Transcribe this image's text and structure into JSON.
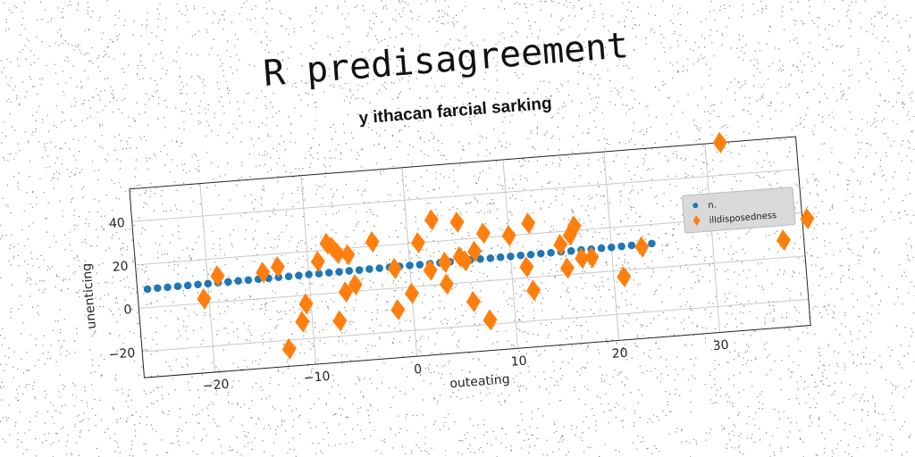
{
  "chart_data": {
    "type": "scatter",
    "title": "R predisagreement",
    "subtitle": "y ithacan farcial sarking",
    "xlabel": "outeating",
    "ylabel": "unenticing",
    "xlim": [
      -27,
      39
    ],
    "ylim": [
      -32,
      55
    ],
    "xticks": [
      -20,
      -10,
      0,
      10,
      20,
      30
    ],
    "yticks": [
      -20,
      0,
      20,
      40
    ],
    "grid": true,
    "legend_position": "right",
    "series": [
      {
        "name": "n.",
        "color": "#1f77b4",
        "marker": "circle",
        "points": [
          [
            -26,
            8.5
          ],
          [
            -25,
            8.6
          ],
          [
            -24,
            8.6
          ],
          [
            -23,
            8.7
          ],
          [
            -22,
            8.7
          ],
          [
            -21,
            8.8
          ],
          [
            -20,
            8.8
          ],
          [
            -19,
            8.9
          ],
          [
            -18,
            8.9
          ],
          [
            -17,
            9.0
          ],
          [
            -16,
            9.0
          ],
          [
            -15,
            9.1
          ],
          [
            -14,
            9.1
          ],
          [
            -13,
            9.2
          ],
          [
            -12,
            9.2
          ],
          [
            -11,
            9.3
          ],
          [
            -10,
            9.4
          ],
          [
            -9,
            9.4
          ],
          [
            -8,
            9.5
          ],
          [
            -7,
            9.5
          ],
          [
            -6,
            9.6
          ],
          [
            -5,
            9.6
          ],
          [
            -4,
            9.7
          ],
          [
            -3,
            9.7
          ],
          [
            -2,
            9.8
          ],
          [
            -1,
            9.8
          ],
          [
            0,
            9.9
          ],
          [
            1,
            9.9
          ],
          [
            2,
            10.0
          ],
          [
            3,
            10.0
          ],
          [
            4,
            10.1
          ],
          [
            5,
            10.2
          ],
          [
            6,
            10.2
          ],
          [
            7,
            10.3
          ],
          [
            8,
            10.3
          ],
          [
            9,
            10.4
          ],
          [
            10,
            10.4
          ],
          [
            11,
            10.5
          ],
          [
            12,
            10.5
          ],
          [
            13,
            10.6
          ],
          [
            14,
            10.6
          ],
          [
            15,
            10.7
          ],
          [
            16,
            10.7
          ],
          [
            17,
            10.8
          ],
          [
            18,
            10.8
          ],
          [
            19,
            10.9
          ],
          [
            20,
            10.9
          ],
          [
            21,
            11.0
          ],
          [
            22,
            11.1
          ],
          [
            23,
            11.1
          ],
          [
            24,
            11.2
          ]
        ]
      },
      {
        "name": "illdisposedness",
        "color": "#ff7f0e",
        "marker": "diamond",
        "points": [
          [
            -20.5,
            2
          ],
          [
            -19,
            12
          ],
          [
            -14.5,
            12
          ],
          [
            -13,
            14
          ],
          [
            -12.5,
            -24
          ],
          [
            -11,
            -12
          ],
          [
            -10.5,
            -4
          ],
          [
            -9,
            15
          ],
          [
            -8,
            23
          ],
          [
            -7.5,
            21
          ],
          [
            -7.3,
            -13
          ],
          [
            -7,
            18
          ],
          [
            -6.5,
            0
          ],
          [
            -6,
            17
          ],
          [
            -5.5,
            3
          ],
          [
            -3.5,
            22
          ],
          [
            -1.5,
            9
          ],
          [
            -1.5,
            -10
          ],
          [
            0,
            -3
          ],
          [
            1,
            20
          ],
          [
            2,
            7
          ],
          [
            2.5,
            30
          ],
          [
            3.5,
            10
          ],
          [
            3.5,
            0
          ],
          [
            5,
            28
          ],
          [
            5,
            12
          ],
          [
            5.5,
            10
          ],
          [
            6,
            -9
          ],
          [
            6.5,
            14
          ],
          [
            7.5,
            22
          ],
          [
            7.5,
            -18
          ],
          [
            10,
            20
          ],
          [
            11.5,
            5
          ],
          [
            12,
            -6
          ],
          [
            12,
            25
          ],
          [
            15,
            14
          ],
          [
            15.5,
            3
          ],
          [
            16,
            18
          ],
          [
            16.5,
            22
          ],
          [
            17,
            7
          ],
          [
            18,
            7
          ],
          [
            21,
            -3
          ],
          [
            23,
            10
          ],
          [
            31.5,
            55
          ],
          [
            37,
            8
          ],
          [
            39.5,
            17
          ]
        ]
      }
    ]
  }
}
